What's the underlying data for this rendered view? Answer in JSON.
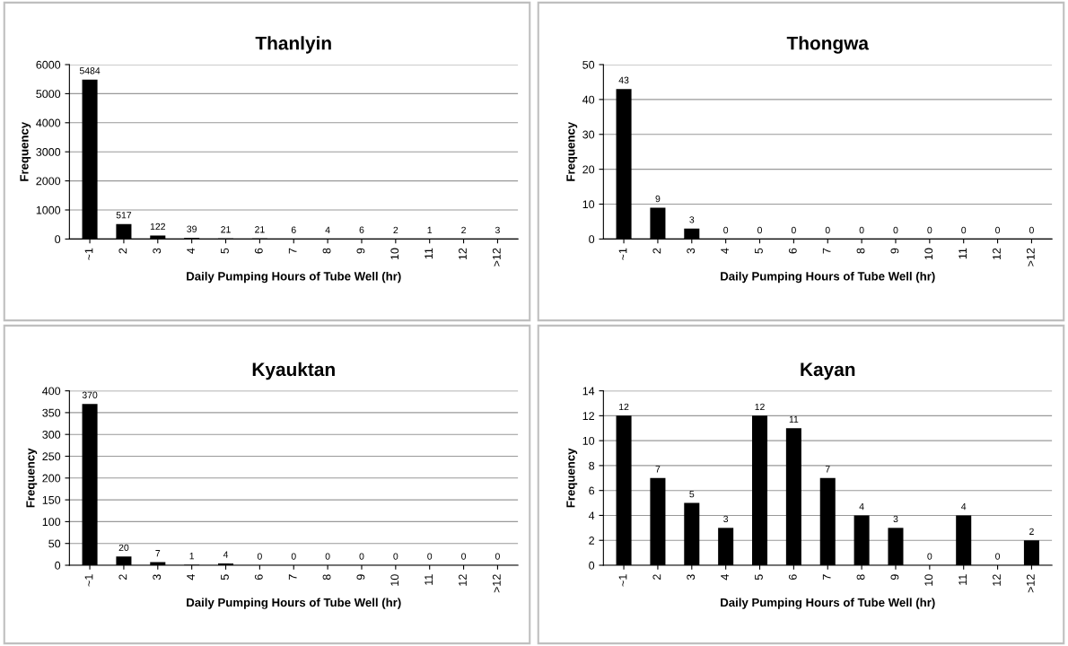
{
  "chart_data": [
    {
      "type": "bar",
      "title": "Thanlyin",
      "xlabel": "Daily Pumping Hours of Tube Well (hr)",
      "ylabel": "Frequency",
      "categories": [
        "~1",
        "2",
        "3",
        "4",
        "5",
        "6",
        "7",
        "8",
        "9",
        "10",
        "11",
        "12",
        ">12"
      ],
      "values": [
        5484,
        517,
        122,
        39,
        21,
        21,
        6,
        4,
        6,
        2,
        1,
        2,
        3
      ],
      "color": "#000000",
      "ylim": [
        0,
        6000
      ],
      "yticks": [
        0,
        1000,
        2000,
        3000,
        4000,
        5000,
        6000
      ],
      "grid": "y",
      "data_labels": true
    },
    {
      "type": "bar",
      "title": "Thongwa",
      "xlabel": "Daily Pumping Hours of Tube Well (hr)",
      "ylabel": "Frequency",
      "categories": [
        "~1",
        "2",
        "3",
        "4",
        "5",
        "6",
        "7",
        "8",
        "9",
        "10",
        "11",
        "12",
        ">12"
      ],
      "values": [
        43,
        9,
        3,
        0,
        0,
        0,
        0,
        0,
        0,
        0,
        0,
        0,
        0
      ],
      "color": "#000000",
      "ylim": [
        0,
        50
      ],
      "yticks": [
        0,
        10,
        20,
        30,
        40,
        50
      ],
      "grid": "y",
      "data_labels": true
    },
    {
      "type": "bar",
      "title": "Kyauktan",
      "xlabel": "Daily Pumping Hours of Tube Well (hr)",
      "ylabel": "Frequency",
      "categories": [
        "~1",
        "2",
        "3",
        "4",
        "5",
        "6",
        "7",
        "8",
        "9",
        "10",
        "11",
        "12",
        ">12"
      ],
      "values": [
        370,
        20,
        7,
        1,
        4,
        0,
        0,
        0,
        0,
        0,
        0,
        0,
        0
      ],
      "color": "#000000",
      "ylim": [
        0,
        400
      ],
      "yticks": [
        0,
        50,
        100,
        150,
        200,
        250,
        300,
        350,
        400
      ],
      "grid": "y",
      "data_labels": true
    },
    {
      "type": "bar",
      "title": "Kayan",
      "xlabel": "Daily Pumping Hours of Tube Well (hr)",
      "ylabel": "Frequency",
      "categories": [
        "~1",
        "2",
        "3",
        "4",
        "5",
        "6",
        "7",
        "8",
        "9",
        "10",
        "11",
        "12",
        ">12"
      ],
      "values": [
        12,
        7,
        5,
        3,
        12,
        11,
        7,
        4,
        3,
        0,
        4,
        0,
        2
      ],
      "color": "#000000",
      "ylim": [
        0,
        14
      ],
      "yticks": [
        0,
        2,
        4,
        6,
        8,
        10,
        12,
        14
      ],
      "grid": "y",
      "data_labels": true
    }
  ]
}
